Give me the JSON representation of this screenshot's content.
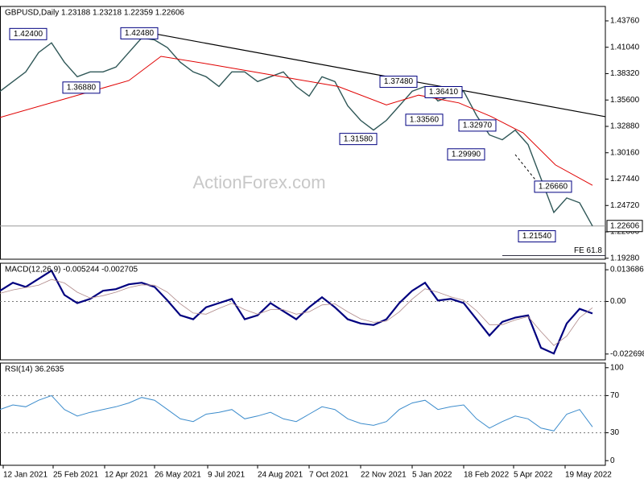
{
  "watermark": "ActionForex.com",
  "chart_data": [
    {
      "type": "line",
      "title": "GBPUSD,Daily  1.23188 1.23218 1.22359 1.22606",
      "x": [
        0,
        8,
        16,
        24,
        32,
        40,
        48,
        56,
        64,
        72,
        80,
        88,
        96,
        104,
        112,
        120,
        128,
        136,
        144,
        152,
        160,
        168,
        176,
        184,
        192,
        200,
        208,
        216,
        224,
        232,
        240,
        248,
        256,
        264,
        272,
        280,
        288,
        296,
        304,
        312,
        320,
        328,
        336,
        344,
        352,
        360,
        368
      ],
      "xlim": [
        0,
        376
      ],
      "ylim": [
        1.1918,
        1.4525
      ],
      "yticks": [
        {
          "value": 1.4376,
          "label": "1.43760"
        },
        {
          "value": 1.4104,
          "label": "1.41040"
        },
        {
          "value": 1.3832,
          "label": "1.38320"
        },
        {
          "value": 1.356,
          "label": "1.35600"
        },
        {
          "value": 1.3288,
          "label": "1.32880"
        },
        {
          "value": 1.3016,
          "label": "1.30160"
        },
        {
          "value": 1.2744,
          "label": "1.27440"
        },
        {
          "value": 1.2472,
          "label": "1.24720"
        },
        {
          "value": 1.22,
          "label": "1.22000"
        },
        {
          "value": 1.1928,
          "label": "1.19280"
        }
      ],
      "series": [
        {
          "name": "GBPUSD",
          "color": "#2f5757",
          "width": 1.4,
          "values": [
            1.365,
            1.375,
            1.385,
            1.405,
            1.415,
            1.395,
            1.38,
            1.385,
            1.385,
            1.39,
            1.405,
            1.42,
            1.418,
            1.41,
            1.395,
            1.385,
            1.38,
            1.37,
            1.385,
            1.385,
            1.375,
            1.38,
            1.385,
            1.37,
            1.36,
            1.38,
            1.375,
            1.35,
            1.335,
            1.325,
            1.335,
            1.35,
            1.365,
            1.37,
            1.355,
            1.36,
            1.365,
            1.34,
            1.32,
            1.315,
            1.325,
            1.31,
            1.275,
            1.24,
            1.255,
            1.25,
            1.226
          ]
        },
        {
          "name": "MA",
          "color": "#e00000",
          "width": 1,
          "x": [
            0,
            40,
            80,
            100,
            130,
            175,
            210,
            240,
            260,
            285,
            305,
            325,
            345,
            368
          ],
          "values": [
            1.338,
            1.357,
            1.376,
            1.401,
            1.393,
            1.38,
            1.37,
            1.351,
            1.361,
            1.353,
            1.339,
            1.322,
            1.289,
            1.268
          ]
        }
      ],
      "trendline": {
        "x": [
          96,
          376
        ],
        "values": [
          1.4243,
          1.3388
        ],
        "color": "#000000"
      },
      "last_price": {
        "value": 1.22606,
        "label": "1.22606"
      },
      "fe_level": {
        "value": 1.1955,
        "label": "FE 61.8",
        "x": 312
      },
      "annotations": [
        {
          "label": "1.42400",
          "value": 1.424,
          "x": 6
        },
        {
          "label": "1.42480",
          "value": 1.4248,
          "x": 75
        },
        {
          "label": "1.36880",
          "value": 1.3688,
          "x": 39
        },
        {
          "label": "1.37480",
          "value": 1.3748,
          "x": 236
        },
        {
          "label": "1.36410",
          "value": 1.3641,
          "x": 264
        },
        {
          "label": "1.33560",
          "value": 1.3356,
          "x": 252
        },
        {
          "label": "1.31580",
          "value": 1.3158,
          "x": 211
        },
        {
          "label": "1.32970",
          "value": 1.3297,
          "x": 285
        },
        {
          "label": "1.29990",
          "value": 1.2999,
          "x": 278
        },
        {
          "label": "1.26660",
          "value": 1.2666,
          "x": 332
        },
        {
          "label": "1.21540",
          "value": 1.2154,
          "x": 322
        }
      ]
    },
    {
      "type": "line",
      "title": "MACD(12,26,9) -0.005244 -0.002705",
      "x": [
        0,
        8,
        16,
        24,
        32,
        40,
        48,
        56,
        64,
        72,
        80,
        88,
        96,
        104,
        112,
        120,
        128,
        136,
        144,
        152,
        160,
        168,
        176,
        184,
        192,
        200,
        208,
        216,
        224,
        232,
        240,
        248,
        256,
        264,
        272,
        280,
        288,
        296,
        304,
        312,
        320,
        328,
        336,
        344,
        352,
        360,
        368
      ],
      "xlim": [
        0,
        376
      ],
      "ylim": [
        -0.0252,
        0.0165
      ],
      "yticks": [
        0.013686,
        {
          "value": 0,
          "label": "0.00"
        },
        -0.022698
      ],
      "levels": [
        0
      ],
      "series": [
        {
          "name": "MACD",
          "color": "#00007f",
          "width": 2.2,
          "values": [
            0.0046,
            0.0081,
            0.0063,
            0.0098,
            0.0133,
            0.0028,
            -0.0007,
            0.0011,
            0.0046,
            0.0053,
            0.0074,
            0.0081,
            0.0063,
            0.0004,
            -0.006,
            -0.0077,
            -0.0025,
            -0.0007,
            0.0011,
            -0.0077,
            -0.006,
            -0.0007,
            -0.0042,
            -0.0077,
            -0.0025,
            0.0018,
            -0.0025,
            -0.0077,
            -0.0095,
            -0.0102,
            -0.0077,
            -0.0007,
            0.0046,
            0.0081,
            0.0004,
            0.0011,
            -0.0007,
            -0.0077,
            -0.0147,
            -0.0088,
            -0.007,
            -0.006,
            -0.02,
            -0.0225,
            -0.0095,
            -0.0032,
            -0.0052
          ]
        },
        {
          "name": "Signal",
          "color": "#b08a8a",
          "width": 0.8,
          "values": [
            0.0035,
            0.005,
            0.006,
            0.007,
            0.0095,
            0.008,
            0.004,
            0.0015,
            0.0025,
            0.004,
            0.006,
            0.0072,
            0.007,
            0.004,
            -0.001,
            -0.005,
            -0.0055,
            -0.003,
            -0.0008,
            -0.0035,
            -0.0055,
            -0.0035,
            -0.0035,
            -0.0055,
            -0.0045,
            -0.0015,
            -0.001,
            -0.0045,
            -0.0075,
            -0.009,
            -0.0085,
            -0.0045,
            0.001,
            0.0055,
            0.004,
            0.002,
            0.0005,
            -0.004,
            -0.01,
            -0.01,
            -0.008,
            -0.0065,
            -0.013,
            -0.019,
            -0.015,
            -0.007,
            -0.0027
          ]
        }
      ]
    },
    {
      "type": "line",
      "title": "RSI(14) 36.2635",
      "x": [
        0,
        8,
        16,
        24,
        32,
        40,
        48,
        56,
        64,
        72,
        80,
        88,
        96,
        104,
        112,
        120,
        128,
        136,
        144,
        152,
        160,
        168,
        176,
        184,
        192,
        200,
        208,
        216,
        224,
        232,
        240,
        248,
        256,
        264,
        272,
        280,
        288,
        296,
        304,
        312,
        320,
        328,
        336,
        344,
        352,
        360,
        368
      ],
      "xlim": [
        0,
        376
      ],
      "ylim": [
        -5,
        105
      ],
      "yticks": [
        100,
        70,
        30,
        0
      ],
      "levels": [
        70,
        30
      ],
      "series": [
        {
          "name": "RSI",
          "color": "#3c8ccc",
          "width": 1,
          "values": [
            55,
            60,
            58,
            65,
            70,
            55,
            48,
            52,
            55,
            58,
            62,
            68,
            65,
            55,
            45,
            42,
            50,
            52,
            55,
            45,
            48,
            52,
            45,
            42,
            50,
            58,
            55,
            45,
            40,
            38,
            42,
            55,
            62,
            65,
            55,
            58,
            60,
            45,
            35,
            42,
            48,
            45,
            35,
            32,
            50,
            55,
            36.3
          ]
        }
      ],
      "xticks": [
        {
          "value": 2,
          "label": "12 Jan 2021"
        },
        {
          "value": 33,
          "label": "25 Feb 2021"
        },
        {
          "value": 65,
          "label": "12 Apr 2021"
        },
        {
          "value": 96,
          "label": "26 May 2021"
        },
        {
          "value": 129,
          "label": "9 Jul 2021"
        },
        {
          "value": 160,
          "label": "24 Aug 2021"
        },
        {
          "value": 192,
          "label": "7 Oct 2021"
        },
        {
          "value": 224,
          "label": "22 Nov 2021"
        },
        {
          "value": 256,
          "label": "5 Jan 2022"
        },
        {
          "value": 288,
          "label": "18 Feb 2022"
        },
        {
          "value": 319,
          "label": "5 Apr 2022"
        },
        {
          "value": 351,
          "label": "19 May 2022"
        }
      ]
    }
  ]
}
